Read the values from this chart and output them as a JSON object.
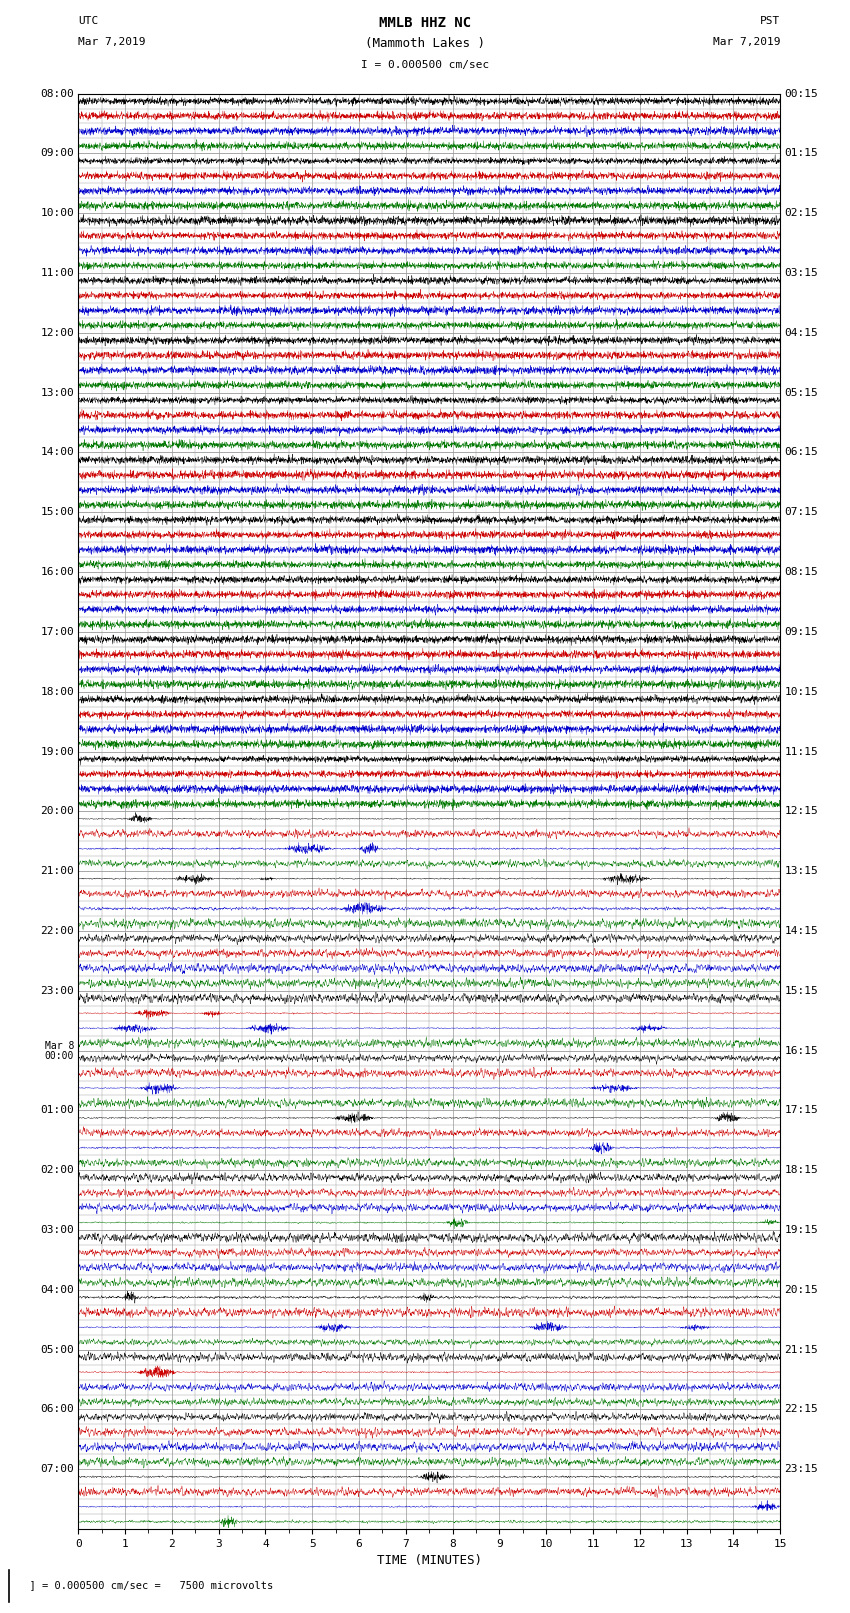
{
  "title_line1": "MMLB HHZ NC",
  "title_line2": "(Mammoth Lakes )",
  "title_line3": "I = 0.000500 cm/sec",
  "left_label": "UTC",
  "left_date": "Mar 7,2019",
  "right_label": "PST",
  "right_date": "Mar 7,2019",
  "xlabel": "TIME (MINUTES)",
  "bottom_note": "  ] = 0.000500 cm/sec =   7500 microvolts",
  "utc_times": [
    "08:00",
    "09:00",
    "10:00",
    "11:00",
    "12:00",
    "13:00",
    "14:00",
    "15:00",
    "16:00",
    "17:00",
    "18:00",
    "19:00",
    "20:00",
    "21:00",
    "22:00",
    "23:00",
    "00:00",
    "01:00",
    "02:00",
    "03:00",
    "04:00",
    "05:00",
    "06:00",
    "07:00"
  ],
  "pst_times": [
    "00:15",
    "01:15",
    "02:15",
    "03:15",
    "04:15",
    "05:15",
    "06:15",
    "07:15",
    "08:15",
    "09:15",
    "10:15",
    "11:15",
    "12:15",
    "13:15",
    "14:15",
    "15:15",
    "16:15",
    "17:15",
    "18:15",
    "19:15",
    "20:15",
    "21:15",
    "22:15",
    "23:15"
  ],
  "mar8_index": 16,
  "n_hours": 24,
  "n_subtraces": 4,
  "trace_colors": [
    "#000000",
    "#cc0000",
    "#0000cc",
    "#007700"
  ],
  "bg_color": "#ffffff",
  "grid_color": "#999999",
  "quiet_hours": 12,
  "figsize": [
    8.5,
    16.13
  ],
  "dpi": 100,
  "xticks": [
    0,
    1,
    2,
    3,
    4,
    5,
    6,
    7,
    8,
    9,
    10,
    11,
    12,
    13,
    14,
    15
  ]
}
